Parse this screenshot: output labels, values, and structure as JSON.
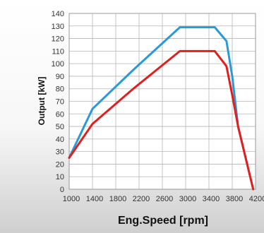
{
  "chart_data": {
    "type": "line",
    "title": "",
    "xlabel": "Eng.Speed [rpm]",
    "ylabel": "Output [kW]",
    "xlim": [
      1000,
      4200
    ],
    "ylim": [
      0,
      140
    ],
    "x_ticks": [
      1000,
      1400,
      1800,
      2200,
      2600,
      3000,
      3400,
      3800,
      4200
    ],
    "y_ticks": [
      0,
      10,
      20,
      30,
      40,
      50,
      60,
      70,
      80,
      90,
      100,
      110,
      120,
      130,
      140
    ],
    "grid": true,
    "legend": "none",
    "series": [
      {
        "color": "#2a9ad6",
        "points": [
          [
            1000,
            25
          ],
          [
            1400,
            64
          ],
          [
            2100,
            95
          ],
          [
            2900,
            129
          ],
          [
            3500,
            129
          ],
          [
            3700,
            118
          ],
          [
            3800,
            90
          ],
          [
            3900,
            50
          ],
          [
            4160,
            0
          ]
        ]
      },
      {
        "color": "#e0201f",
        "points": [
          [
            1000,
            25
          ],
          [
            1400,
            52
          ],
          [
            2100,
            80
          ],
          [
            2900,
            110
          ],
          [
            3500,
            110
          ],
          [
            3700,
            98
          ],
          [
            3800,
            75
          ],
          [
            3900,
            50
          ],
          [
            4160,
            0
          ]
        ]
      }
    ]
  }
}
